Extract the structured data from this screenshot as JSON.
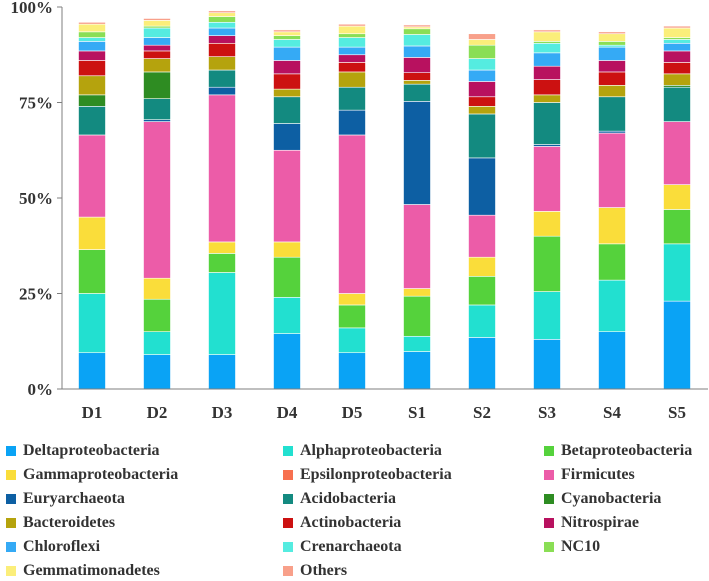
{
  "chart_data": {
    "type": "bar",
    "stacked": true,
    "categories": [
      "D1",
      "D2",
      "D3",
      "D4",
      "D5",
      "S1",
      "S2",
      "S3",
      "S4",
      "S5"
    ],
    "ylim": [
      0,
      100
    ],
    "yticks": [
      "0%",
      "25%",
      "50%",
      "75%",
      "100%"
    ],
    "legend_position": "bottom",
    "series": [
      {
        "name": "Deltaproteobacteria",
        "color": "#0aa3f5",
        "values": [
          9.5,
          9,
          9,
          14.5,
          9.5,
          9.8,
          13.5,
          13,
          15,
          23
        ]
      },
      {
        "name": "Alphaproteobacteria",
        "color": "#22e0d0",
        "values": [
          15.5,
          6,
          21.5,
          9.5,
          6.5,
          4,
          8.5,
          12.5,
          13.5,
          15
        ]
      },
      {
        "name": "Betaproteobacteria",
        "color": "#55d23c",
        "values": [
          11.5,
          8.5,
          5,
          10.5,
          6,
          10.5,
          7.5,
          14.5,
          9.5,
          9
        ]
      },
      {
        "name": "Gammaproteobacteria",
        "color": "#fadd3a",
        "values": [
          8.5,
          5.5,
          3,
          4,
          3,
          2,
          5,
          6.5,
          9.5,
          6.5
        ]
      },
      {
        "name": "Epsilonproteobacteria",
        "color": "#f7704f",
        "values": [
          0,
          0,
          0,
          0,
          0,
          0,
          0,
          0,
          0,
          0
        ]
      },
      {
        "name": "Firmicutes",
        "color": "#ec5ca8",
        "values": [
          21.5,
          41,
          38.5,
          24,
          41.5,
          22,
          11,
          17,
          19.5,
          16.5
        ]
      },
      {
        "name": "Euryarchaeota",
        "color": "#0d5fa3",
        "values": [
          0,
          0.5,
          2,
          7,
          6.5,
          27,
          15,
          0.5,
          0.5,
          0
        ]
      },
      {
        "name": "Acidobacteria",
        "color": "#138a80",
        "values": [
          7.5,
          5.5,
          4.5,
          7,
          6,
          4.5,
          11.5,
          11,
          9,
          9
        ]
      },
      {
        "name": "Cyanobacteria",
        "color": "#2e8c22",
        "values": [
          3,
          7,
          0,
          0,
          0,
          0,
          0,
          0,
          0,
          0.5
        ]
      },
      {
        "name": "Bacteroidetes",
        "color": "#b5a30d",
        "values": [
          5,
          3.5,
          3.5,
          2,
          4,
          1,
          2,
          2,
          3,
          3
        ]
      },
      {
        "name": "Actinobacteria",
        "color": "#cc1111",
        "values": [
          4,
          2,
          3.5,
          4,
          2.5,
          2,
          2.5,
          4,
          3.5,
          3
        ]
      },
      {
        "name": "Nitrospirae",
        "color": "#b8115f",
        "values": [
          2.5,
          1.5,
          2,
          3.5,
          2,
          4,
          4,
          3.5,
          3,
          3
        ]
      },
      {
        "name": "Chloroflexi",
        "color": "#35aaf5",
        "values": [
          2.5,
          2,
          2,
          3.5,
          2,
          3,
          3,
          3.5,
          3.5,
          2
        ]
      },
      {
        "name": "Crenarchaeota",
        "color": "#55ece0",
        "values": [
          1,
          2.5,
          1.5,
          2,
          2.5,
          3,
          3,
          2.5,
          0.5,
          1
        ]
      },
      {
        "name": "NC10",
        "color": "#8ade55",
        "values": [
          1.5,
          0.5,
          1.5,
          1,
          1,
          1.5,
          3.5,
          0.5,
          1,
          0.5
        ]
      },
      {
        "name": "Gemmatimonadetes",
        "color": "#fbee7a",
        "values": [
          2,
          1.5,
          1,
          1,
          2,
          0.5,
          1.5,
          2.5,
          2,
          2.5
        ]
      },
      {
        "name": "Others",
        "color": "#f8a08a",
        "values": [
          0.5,
          0.5,
          0.5,
          0.5,
          0.5,
          0.5,
          1.5,
          0.5,
          0.5,
          0.5
        ]
      }
    ]
  }
}
